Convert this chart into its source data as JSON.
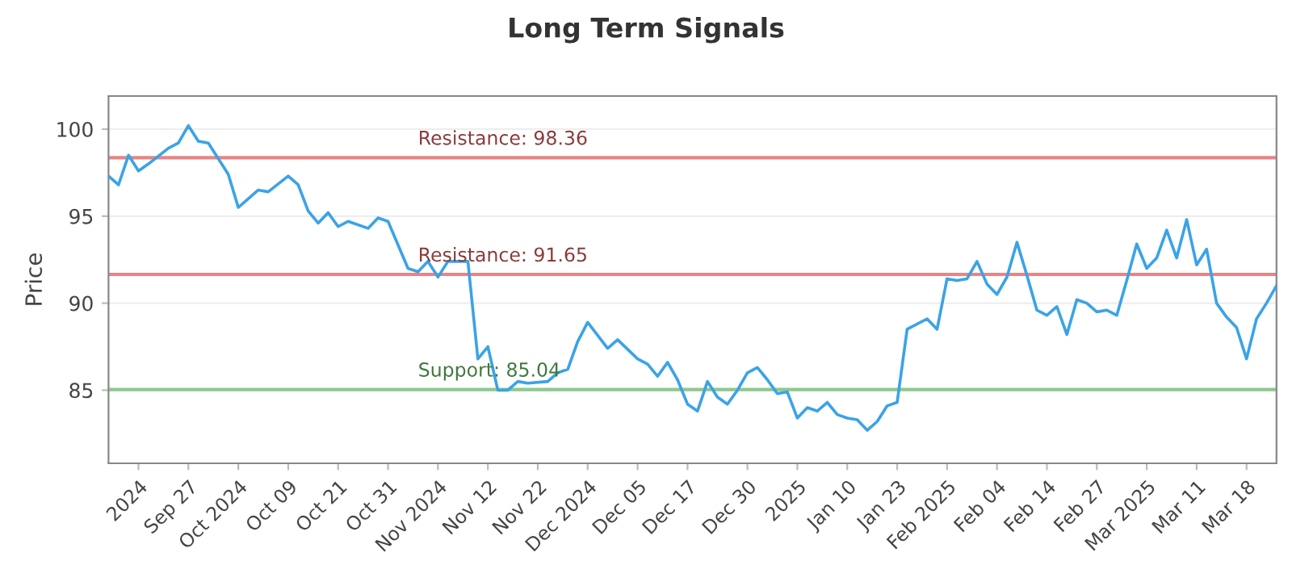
{
  "chart_data": {
    "type": "line",
    "title": "Long Term Signals",
    "ylabel": "Price",
    "categories": [
      null,
      null,
      null,
      "2024",
      null,
      null,
      null,
      null,
      "Sep 27",
      null,
      null,
      null,
      null,
      "Oct 2024",
      null,
      null,
      null,
      null,
      "Oct 09",
      null,
      null,
      null,
      null,
      "Oct 21",
      null,
      null,
      null,
      null,
      "Oct 31",
      null,
      null,
      null,
      null,
      "Nov 2024",
      null,
      null,
      null,
      null,
      "Nov 12",
      null,
      null,
      null,
      null,
      "Nov 22",
      null,
      null,
      null,
      null,
      "Dec 2024",
      null,
      null,
      null,
      null,
      "Dec 05",
      null,
      null,
      null,
      null,
      "Dec 17",
      null,
      null,
      null,
      null,
      null,
      "Dec 30",
      null,
      null,
      null,
      null,
      "2025",
      null,
      null,
      null,
      null,
      "Jan 10",
      null,
      null,
      null,
      null,
      "Jan 23",
      null,
      null,
      null,
      null,
      "Feb 2025",
      null,
      null,
      null,
      null,
      "Feb 04",
      null,
      null,
      null,
      null,
      "Feb 14",
      null,
      null,
      null,
      null,
      "Feb 27",
      null,
      null,
      null,
      null,
      "Mar 2025",
      null,
      null,
      null,
      null,
      "Mar 11",
      null,
      null,
      null,
      null,
      "Mar 18",
      null,
      null,
      null
    ],
    "series": [
      {
        "color": "#3ba3e6",
        "values": [
          97.3,
          96.8,
          98.5,
          97.6,
          98.0,
          null,
          98.9,
          99.2,
          100.2,
          99.3,
          99.2,
          null,
          97.4,
          95.5,
          null,
          96.5,
          96.4,
          null,
          97.3,
          96.8,
          95.3,
          94.6,
          95.2,
          94.4,
          94.7,
          null,
          94.3,
          94.9,
          94.7,
          null,
          92.0,
          91.8,
          92.4,
          91.5,
          92.4,
          null,
          92.4,
          86.8,
          87.5,
          85.0,
          85.0,
          85.5,
          85.4,
          null,
          85.5,
          86.0,
          86.2,
          87.8,
          88.9,
          null,
          87.4,
          87.9,
          null,
          86.8,
          86.5,
          85.8,
          86.6,
          85.6,
          84.2,
          83.8,
          85.5,
          84.6,
          84.2,
          85.0,
          86.0,
          86.3,
          85.6,
          84.8,
          84.9,
          83.4,
          84.0,
          83.8,
          84.3,
          83.6,
          83.4,
          83.3,
          82.7,
          83.2,
          84.1,
          84.3,
          88.5,
          null,
          89.1,
          88.5,
          91.4,
          91.3,
          91.4,
          92.4,
          91.1,
          90.5,
          91.5,
          93.5,
          91.6,
          89.6,
          89.3,
          89.8,
          88.2,
          90.2,
          90.0,
          89.5,
          89.6,
          89.3,
          91.3,
          93.4,
          92.0,
          92.6,
          94.2,
          92.6,
          94.8,
          92.2,
          93.1,
          90.0,
          89.2,
          88.6,
          86.8,
          89.1,
          90.0,
          91.0
        ]
      }
    ],
    "ylim": [
      80.8,
      101.9
    ],
    "yticks": [
      85,
      90,
      95,
      100
    ],
    "grid": "y",
    "ref_lines": [
      {
        "axis": "y",
        "value": 98.36,
        "label": "Resistance: 98.36",
        "color": "#e88484"
      },
      {
        "axis": "y",
        "value": 91.65,
        "label": "Resistance: 91.65",
        "color": "#e88484"
      },
      {
        "axis": "y",
        "value": 85.04,
        "label": "Support: 85.04",
        "color": "#8cc98c"
      }
    ]
  }
}
